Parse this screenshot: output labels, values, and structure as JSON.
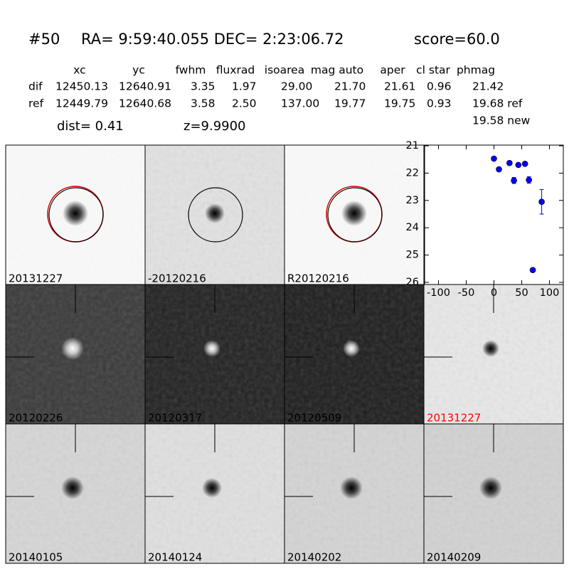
{
  "header": {
    "id": "#50",
    "coords": "RA= 9:59:40.055 DEC= 2:23:06.72",
    "score": "score=60.0"
  },
  "table": {
    "columns": [
      "xc",
      "yc",
      "fwhm",
      "fluxrad",
      "isoarea",
      "mag auto",
      "aper",
      "cl star",
      "phmag"
    ],
    "rows": [
      [
        "dif",
        "12450.13",
        "12640.91",
        "3.35",
        "1.97",
        "29.00",
        "21.70",
        "21.61",
        "0.96",
        "21.42"
      ],
      [
        "ref",
        "12449.79",
        "12640.68",
        "3.58",
        "2.50",
        "137.00",
        "19.77",
        "19.75",
        "0.93",
        "19.68 ref"
      ]
    ],
    "extra": "19.58 new"
  },
  "dist": "dist=  0.41",
  "z": "z=9.9900",
  "panels": [
    "20131227",
    "-20120216",
    "R20120216",
    "20120226",
    "20120317",
    "20120509",
    "20131227",
    "20140105",
    "20140124",
    "20140202",
    "20140209"
  ],
  "chart_data": {
    "type": "scatter",
    "x": [
      0,
      9,
      28,
      44,
      56,
      36,
      63,
      86,
      70
    ],
    "series": [
      {
        "color": "#0000ff",
        "values": [
          21.47,
          21.86,
          21.63,
          21.7,
          21.66,
          22.27,
          22.25,
          23.05,
          25.55
        ],
        "errors": [
          0.04,
          0.05,
          0.04,
          0.06,
          0.05,
          0.11,
          0.12,
          0.45,
          0.06
        ]
      }
    ],
    "xlim": [
      -125,
      125
    ],
    "ylim": [
      21,
      26
    ],
    "xticks": [
      -100,
      -50,
      0,
      50,
      100
    ],
    "yticks": [
      21,
      22,
      23,
      24,
      25,
      26
    ],
    "y_inverted": true
  }
}
